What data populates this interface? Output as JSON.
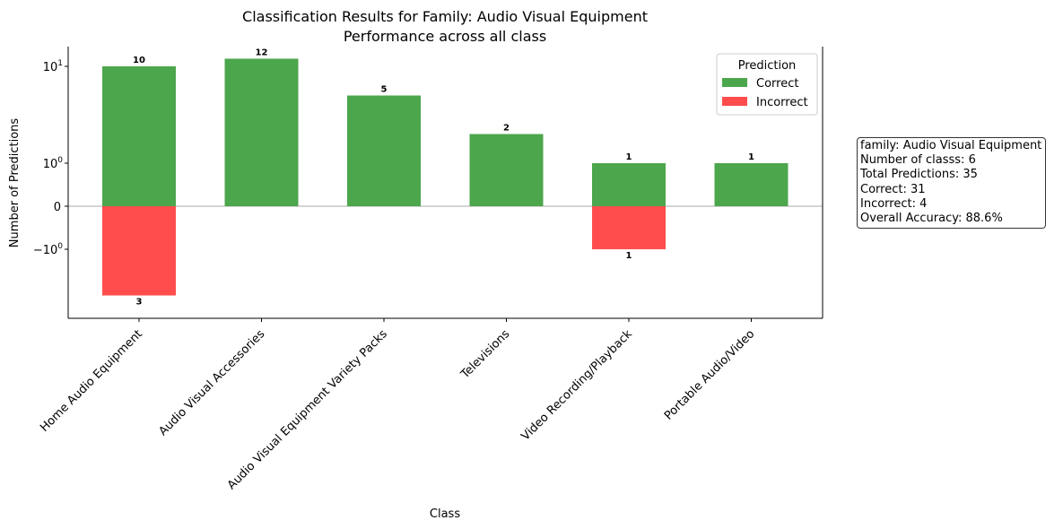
{
  "chart_data": {
    "type": "bar",
    "title": "Classification Results for Family: Audio Visual Equipment",
    "subtitle": "Performance across all class",
    "xlabel": "Class",
    "ylabel": "Number of Predictions",
    "yscale": "symlog",
    "categories": [
      "Home Audio Equipment",
      "Audio Visual Accessories",
      "Audio Visual Equipment Variety Packs",
      "Televisions",
      "Video Recording/Playback",
      "Portable Audio/Video"
    ],
    "series": [
      {
        "name": "Correct",
        "values": [
          10,
          12,
          5,
          2,
          1,
          1
        ],
        "color": "#4ca64c"
      },
      {
        "name": "Incorrect",
        "values": [
          3,
          0,
          0,
          0,
          1,
          0
        ],
        "color": "#ff4d4d",
        "direction": "down"
      }
    ],
    "yticks": [
      {
        "value": 10,
        "base": "10",
        "exp": "1"
      },
      {
        "value": 1,
        "base": "10",
        "exp": "0"
      },
      {
        "value": 0,
        "label": "0"
      },
      {
        "value": -1,
        "base": "−10",
        "exp": "0"
      }
    ],
    "legend": {
      "title": "Prediction",
      "position": "top-right"
    },
    "grid": false
  },
  "stats": {
    "family": "family: Audio Visual Equipment",
    "num_classes": "Number of classs: 6",
    "total": "Total Predictions: 35",
    "correct": "Correct: 31",
    "incorrect": "Incorrect: 4",
    "accuracy": "Overall Accuracy: 88.6%"
  }
}
